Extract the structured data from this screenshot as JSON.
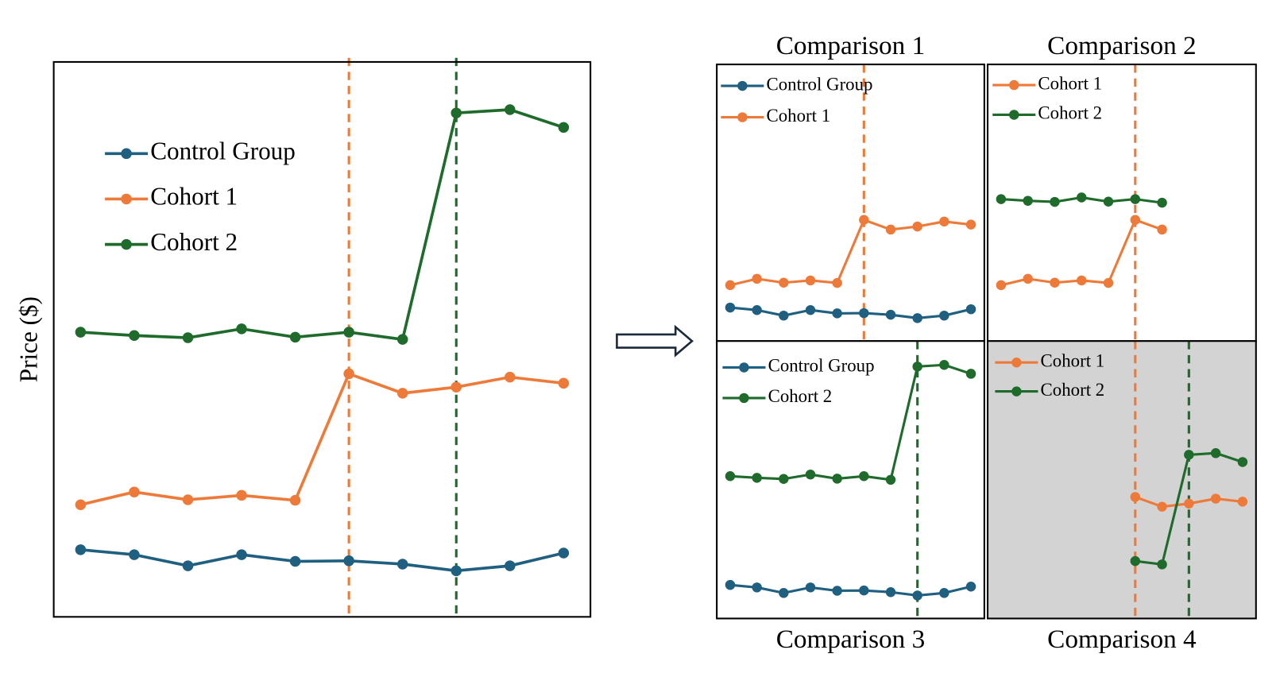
{
  "chart_data": [
    {
      "type": "line",
      "ylabel": "Price ($)",
      "x": [
        0,
        1,
        2,
        3,
        4,
        5,
        6,
        7,
        8,
        9
      ],
      "xlim": [
        -0.5,
        9.5
      ],
      "ylim": [
        0,
        100
      ],
      "series": [
        {
          "name": "Control Group",
          "color": "#1f5f80",
          "values": [
            12.1,
            11.2,
            9.2,
            11.2,
            10.0,
            10.1,
            9.5,
            8.3,
            9.2,
            11.5
          ]
        },
        {
          "name": "Cohort 1",
          "color": "#ee7a3a",
          "values": [
            20.2,
            22.5,
            21.1,
            21.9,
            21.0,
            43.8,
            40.3,
            41.4,
            43.2,
            42.1
          ]
        },
        {
          "name": "Cohort 2",
          "color": "#1e6b2b",
          "values": [
            51.3,
            50.7,
            50.3,
            51.9,
            50.4,
            51.3,
            50.0,
            90.8,
            91.4,
            88.2
          ]
        }
      ],
      "vlines": [
        {
          "x": 5,
          "color": "#ee7a3a"
        },
        {
          "x": 7,
          "color": "#1e6b2b"
        }
      ]
    },
    {
      "type": "line",
      "title": "Comparison 1",
      "x": [
        0,
        1,
        2,
        3,
        4,
        5,
        6,
        7,
        8,
        9
      ],
      "xlim": [
        -0.5,
        9.5
      ],
      "ylim": [
        0,
        100
      ],
      "series": [
        {
          "name": "Control Group",
          "color": "#1f5f80",
          "values": [
            12.1,
            11.2,
            9.2,
            11.2,
            10.0,
            10.1,
            9.5,
            8.3,
            9.2,
            11.5
          ]
        },
        {
          "name": "Cohort 1",
          "color": "#ee7a3a",
          "values": [
            20.2,
            22.5,
            21.1,
            21.9,
            21.0,
            43.8,
            40.3,
            41.4,
            43.2,
            42.1
          ]
        }
      ],
      "vlines": [
        {
          "x": 5,
          "color": "#ee7a3a"
        }
      ]
    },
    {
      "type": "line",
      "title": "Comparison 2",
      "x": [
        0,
        1,
        2,
        3,
        4,
        5,
        6,
        7,
        8,
        9
      ],
      "xlim": [
        -0.5,
        9.5
      ],
      "ylim": [
        0,
        100
      ],
      "series": [
        {
          "name": "Cohort 1",
          "color": "#ee7a3a",
          "values": [
            20.2,
            22.5,
            21.1,
            21.9,
            21.0,
            43.8,
            40.3,
            null,
            null,
            null
          ]
        },
        {
          "name": "Cohort 2",
          "color": "#1e6b2b",
          "values": [
            51.3,
            50.7,
            50.3,
            51.9,
            50.4,
            51.3,
            50.0,
            null,
            null,
            null
          ]
        }
      ],
      "vlines": [
        {
          "x": 5,
          "color": "#ee7a3a"
        }
      ]
    },
    {
      "type": "line",
      "title": "Comparison 3",
      "x": [
        0,
        1,
        2,
        3,
        4,
        5,
        6,
        7,
        8,
        9
      ],
      "xlim": [
        -0.5,
        9.5
      ],
      "ylim": [
        0,
        100
      ],
      "series": [
        {
          "name": "Control Group",
          "color": "#1f5f80",
          "values": [
            12.1,
            11.2,
            9.2,
            11.2,
            10.0,
            10.1,
            9.5,
            8.3,
            9.2,
            11.5
          ]
        },
        {
          "name": "Cohort 2",
          "color": "#1e6b2b",
          "values": [
            51.3,
            50.7,
            50.3,
            51.9,
            50.4,
            51.3,
            50.0,
            90.8,
            91.4,
            88.2
          ]
        }
      ],
      "vlines": [
        {
          "x": 7,
          "color": "#1e6b2b"
        }
      ]
    },
    {
      "type": "line",
      "title": "Comparison 4",
      "x": [
        0,
        1,
        2,
        3,
        4,
        5,
        6,
        7,
        8,
        9
      ],
      "xlim": [
        -0.5,
        9.5
      ],
      "ylim": [
        0,
        100
      ],
      "background": "#d3d3d3",
      "series": [
        {
          "name": "Cohort 1",
          "color": "#ee7a3a",
          "values": [
            null,
            null,
            null,
            null,
            null,
            43.8,
            40.3,
            41.4,
            43.2,
            42.1
          ]
        },
        {
          "name": "Cohort 2",
          "color": "#1e6b2b",
          "values": [
            null,
            null,
            null,
            null,
            null,
            20.7,
            19.5,
            59.0,
            59.6,
            56.4
          ]
        }
      ],
      "vlines": [
        {
          "x": 5,
          "color": "#ee7a3a"
        },
        {
          "x": 7,
          "color": "#1e6b2b"
        }
      ]
    }
  ]
}
